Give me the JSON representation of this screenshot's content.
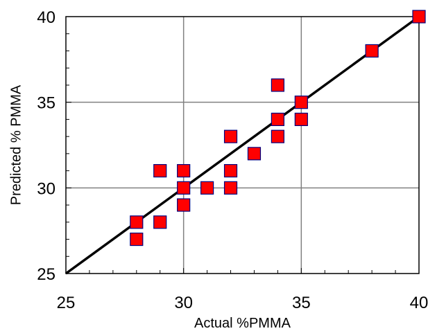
{
  "chart_data": {
    "type": "scatter",
    "title": "",
    "xlabel": "Actual %PMMA",
    "ylabel": "Predicted % PMMA",
    "xlim": [
      25,
      40
    ],
    "ylim": [
      25,
      40
    ],
    "x_ticks": [
      25,
      30,
      35,
      40
    ],
    "y_ticks": [
      25,
      30,
      35,
      40
    ],
    "x_tick_labels": [
      "25",
      "30",
      "35",
      "40"
    ],
    "y_tick_labels": [
      "25",
      "30",
      "35",
      "40"
    ],
    "grid": true,
    "legend": "none",
    "marker": "square",
    "marker_color": "#ff0000",
    "marker_edge_color": "#000080",
    "line_color": "#000000",
    "series": [
      {
        "type": "scatter",
        "points": [
          [
            28,
            28
          ],
          [
            28,
            27
          ],
          [
            29,
            28
          ],
          [
            29,
            31
          ],
          [
            30,
            31
          ],
          [
            30,
            30
          ],
          [
            30,
            29
          ],
          [
            31,
            30
          ],
          [
            32,
            33
          ],
          [
            32,
            31
          ],
          [
            32,
            30
          ],
          [
            33,
            32
          ],
          [
            34,
            36
          ],
          [
            34,
            34
          ],
          [
            34,
            33
          ],
          [
            35,
            35
          ],
          [
            35,
            34
          ],
          [
            38,
            38
          ],
          [
            40,
            40
          ]
        ]
      },
      {
        "type": "line",
        "points": [
          [
            25,
            25
          ],
          [
            40,
            40
          ]
        ]
      }
    ]
  }
}
